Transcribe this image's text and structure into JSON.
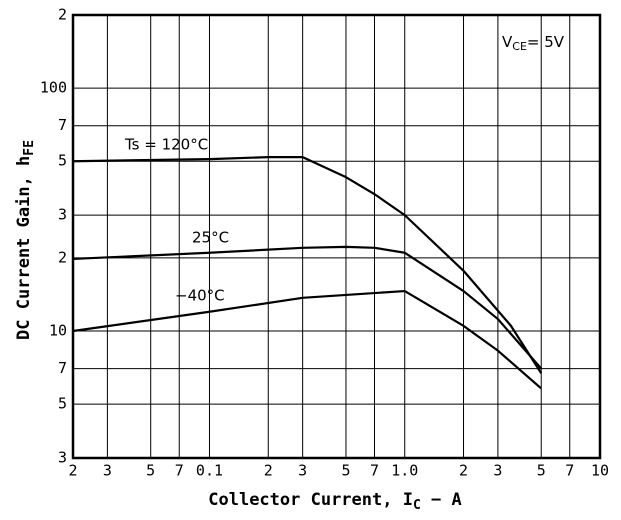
{
  "chart_data": {
    "type": "line",
    "x_label": {
      "main": "Collector Current, I",
      "sub": "C",
      "rest": " − A"
    },
    "y_label": {
      "main": "DC Current Gain, h",
      "sub": "FE"
    },
    "annotation": {
      "main": "V",
      "sub": "CE",
      "rest": "= 5V"
    },
    "x_log": true,
    "y_log": true,
    "grid": true,
    "xlim": [
      0.02,
      10
    ],
    "ylim": [
      3,
      200
    ],
    "xticks": [
      {
        "value": 0.02,
        "label": "2"
      },
      {
        "value": 0.03,
        "label": "3"
      },
      {
        "value": 0.05,
        "label": "5"
      },
      {
        "value": 0.07,
        "label": "7"
      },
      0.1,
      {
        "value": 0.2,
        "label": "2"
      },
      {
        "value": 0.3,
        "label": "3"
      },
      {
        "value": 0.5,
        "label": "5"
      },
      {
        "value": 0.7,
        "label": "7"
      },
      {
        "value": 1,
        "label": "1.0"
      },
      2,
      3,
      5,
      7,
      10
    ],
    "yticks": [
      3,
      5,
      7,
      10,
      {
        "value": 20,
        "label": "2"
      },
      {
        "value": 30,
        "label": "3"
      },
      {
        "value": 50,
        "label": "5"
      },
      {
        "value": 70,
        "label": "7"
      },
      100,
      {
        "value": 200,
        "label": "2"
      }
    ],
    "series": [
      {
        "name": "Ts = 120°C",
        "color": "#000000",
        "x": [
          0.02,
          0.1,
          0.2,
          0.3,
          0.5,
          0.7,
          1,
          2,
          3.5,
          5
        ],
        "values": [
          50,
          51,
          52,
          52,
          43,
          36.6,
          30,
          17.7,
          10.5,
          6.7
        ]
      },
      {
        "name": "25°C",
        "color": "#000000",
        "x": [
          0.02,
          0.1,
          0.3,
          0.5,
          0.7,
          1,
          2,
          3,
          5
        ],
        "values": [
          19.8,
          21,
          22,
          22.2,
          22,
          21,
          14.6,
          11.2,
          7
        ]
      },
      {
        "name": "−40°C",
        "color": "#000000",
        "x": [
          0.02,
          0.1,
          0.3,
          1,
          2,
          3,
          5
        ],
        "values": [
          10,
          12,
          13.7,
          14.6,
          10.5,
          8.3,
          5.8
        ]
      }
    ]
  }
}
